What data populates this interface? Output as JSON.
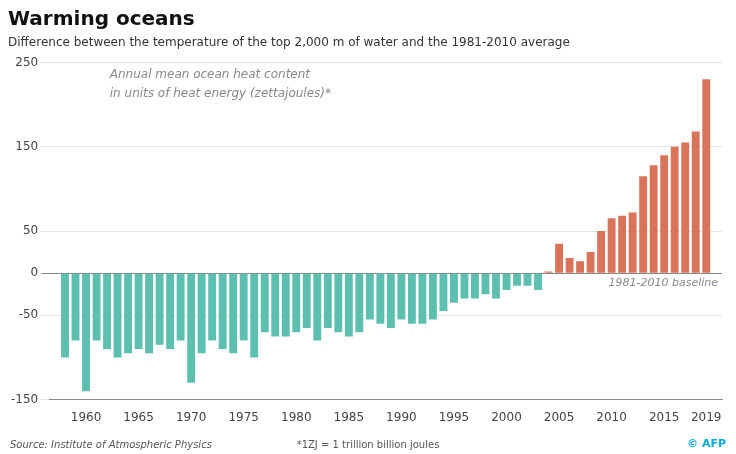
{
  "chart_data": {
    "type": "bar",
    "title": "Warming oceans",
    "subtitle": "Difference between the temperature of the top 2,000 m of water and the 1981-2010 average",
    "annotations": [
      "Annual mean ocean heat content\nin units of heat energy (zettajoules)*",
      "1981-2010 baseline",
      "Source: Institute of Atmospheric Physics",
      "*1ZJ = 1 trillion billion joules",
      "© AFP"
    ],
    "x": [
      1958,
      1959,
      1960,
      1961,
      1962,
      1963,
      1964,
      1965,
      1966,
      1967,
      1968,
      1969,
      1970,
      1971,
      1972,
      1973,
      1974,
      1975,
      1976,
      1977,
      1978,
      1979,
      1980,
      1981,
      1982,
      1983,
      1984,
      1985,
      1986,
      1987,
      1988,
      1989,
      1990,
      1991,
      1992,
      1993,
      1994,
      1995,
      1996,
      1997,
      1998,
      1999,
      2000,
      2001,
      2002,
      2003,
      2004,
      2005,
      2006,
      2007,
      2008,
      2009,
      2010,
      2011,
      2012,
      2013,
      2014,
      2015,
      2016,
      2017,
      2018,
      2019
    ],
    "values": [
      -100,
      -80,
      -140,
      -80,
      -90,
      -100,
      -95,
      -90,
      -95,
      -85,
      -90,
      -80,
      -130,
      -95,
      -80,
      -90,
      -95,
      -80,
      -100,
      -70,
      -75,
      -75,
      -70,
      -65,
      -80,
      -65,
      -70,
      -75,
      -70,
      -55,
      -60,
      -65,
      -55,
      -60,
      -60,
      -55,
      -45,
      -35,
      -30,
      -30,
      -25,
      -30,
      -20,
      -15,
      -15,
      -20,
      2,
      35,
      18,
      14,
      25,
      50,
      65,
      68,
      72,
      115,
      128,
      140,
      150,
      155,
      168,
      230
    ],
    "colors": [
      "#5cbfb0",
      "#5cbfb0",
      "#5cbfb0",
      "#5cbfb0",
      "#5cbfb0",
      "#5cbfb0",
      "#5cbfb0",
      "#5cbfb0",
      "#5cbfb0",
      "#5cbfb0",
      "#5cbfb0",
      "#5cbfb0",
      "#5cbfb0",
      "#5cbfb0",
      "#5cbfb0",
      "#5cbfb0",
      "#5cbfb0",
      "#5cbfb0",
      "#5cbfb0",
      "#5cbfb0",
      "#5cbfb0",
      "#5cbfb0",
      "#5cbfb0",
      "#5cbfb0",
      "#5cbfb0",
      "#5cbfb0",
      "#5cbfb0",
      "#5cbfb0",
      "#5cbfb0",
      "#5cbfb0",
      "#5cbfb0",
      "#5cbfb0",
      "#5cbfb0",
      "#5cbfb0",
      "#5cbfb0",
      "#5cbfb0",
      "#5cbfb0",
      "#5cbfb0",
      "#5cbfb0",
      "#5cbfb0",
      "#5cbfb0",
      "#5cbfb0",
      "#5cbfb0",
      "#5cbfb0",
      "#5cbfb0",
      "#5cbfb0",
      "#d9745a",
      "#d9745a",
      "#d9745a",
      "#d9745a",
      "#d9745a",
      "#d9745a",
      "#d9745a",
      "#d9745a",
      "#d9745a",
      "#d9745a",
      "#d9745a",
      "#d9745a",
      "#d9745a",
      "#d9745a",
      "#d9745a",
      "#d9745a"
    ],
    "xlim": [
      1956.5,
      2020.5
    ],
    "xticks": [
      1960,
      1965,
      1970,
      1975,
      1980,
      1985,
      1990,
      1995,
      2000,
      2005,
      2010,
      2015,
      2019
    ],
    "ylim": [
      -150,
      250
    ],
    "yticks": [
      -150,
      -50,
      0,
      50,
      150,
      250
    ],
    "grid": true
  }
}
